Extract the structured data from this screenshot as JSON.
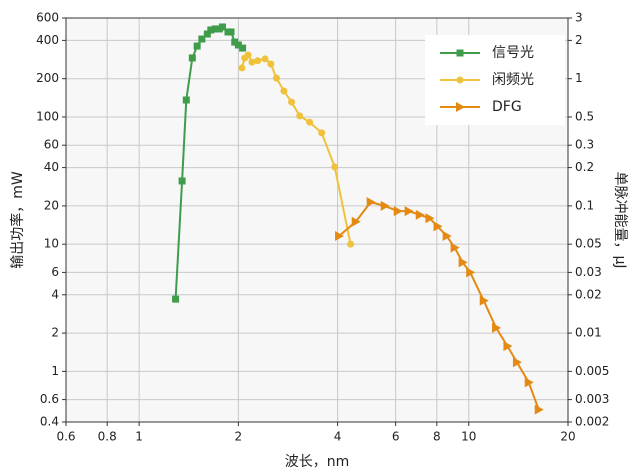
{
  "chart_data": {
    "type": "line",
    "xlabel": "波长，nm",
    "ylabel": "输出功率，mW",
    "y2label": "单脉冲能量，μJ",
    "xlog": true,
    "ylog": true,
    "grid": true,
    "legend": "upper right",
    "xlim": [
      0.6,
      20
    ],
    "xticks": [
      0.6,
      0.8,
      1,
      2,
      4,
      6,
      8,
      10,
      20
    ],
    "ylim": [
      0.4,
      600
    ],
    "yticks": [
      0.4,
      0.6,
      1,
      2,
      4,
      6,
      10,
      20,
      40,
      60,
      100,
      200,
      400,
      600
    ],
    "y2lim": [
      0.002,
      3
    ],
    "y2ticks": [
      0.002,
      0.003,
      0.005,
      0.01,
      0.02,
      0.03,
      0.05,
      0.1,
      0.2,
      0.3,
      0.5,
      1,
      2,
      3
    ],
    "series": [
      {
        "name": "信号光",
        "color": "#3f9c4b",
        "marker": "square",
        "x": [
          1.29,
          1.35,
          1.39,
          1.45,
          1.5,
          1.55,
          1.61,
          1.65,
          1.7,
          1.75,
          1.79,
          1.86,
          1.9,
          1.95,
          2.0,
          2.06
        ],
        "values": [
          3.7,
          31.4,
          136,
          291,
          361,
          410,
          449,
          483,
          492,
          492,
          510,
          466,
          466,
          388,
          368,
          348
        ]
      },
      {
        "name": "闲频光",
        "color": "#f0c23b",
        "marker": "circle",
        "x": [
          2.05,
          2.09,
          2.14,
          2.2,
          2.29,
          2.41,
          2.51,
          2.61,
          2.75,
          2.9,
          3.07,
          3.29,
          3.58,
          3.92,
          4.38
        ],
        "values": [
          243,
          291,
          307,
          270,
          277,
          286,
          261,
          202,
          160,
          131,
          102,
          91,
          75,
          40.5,
          10.0
        ]
      },
      {
        "name": "DFG",
        "color": "#e48a12",
        "marker": "triangle",
        "axis": "y2",
        "x": [
          4.04,
          4.54,
          5.04,
          5.56,
          6.09,
          6.57,
          7.1,
          7.6,
          8.04,
          8.57,
          9.06,
          9.58,
          10.1,
          11.1,
          12.1,
          13.1,
          14.0,
          15.2,
          16.3
        ],
        "values": [
          0.058,
          0.075,
          0.107,
          0.1,
          0.091,
          0.091,
          0.085,
          0.08,
          0.069,
          0.058,
          0.047,
          0.036,
          0.03,
          0.018,
          0.011,
          0.0079,
          0.0059,
          0.0041,
          0.0025
        ]
      }
    ]
  }
}
